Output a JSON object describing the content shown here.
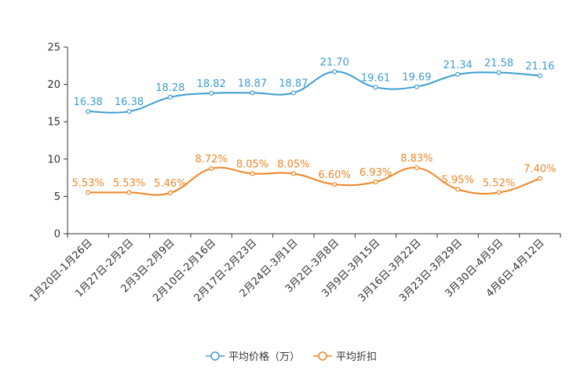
{
  "chart_data": {
    "type": "line",
    "title": "",
    "xlabel": "",
    "ylabel": "",
    "ylim": [
      0,
      25
    ],
    "yticks": [
      0,
      5,
      10,
      15,
      20,
      25
    ],
    "grid": false,
    "legend_position": "bottom",
    "categories": [
      "1月20日-1月26日",
      "1月27日-2月2日",
      "2月3日-2月9日",
      "2月10日-2月16日",
      "2月17日-2月23日",
      "2月24日-3月1日",
      "3月2日-3月8日",
      "3月9日-3月15日",
      "3月16日-3月22日",
      "3月23日-3月29日",
      "3月30日-4月5日",
      "4月6日-4月12日"
    ],
    "series": [
      {
        "name": "平均价格（万）",
        "color": "#3d9cd1",
        "values": [
          16.38,
          16.38,
          18.28,
          18.82,
          18.87,
          18.87,
          21.7,
          19.61,
          19.69,
          21.34,
          21.58,
          21.16
        ],
        "labels": [
          "16.38",
          "16.38",
          "18.28",
          "18.82",
          "18.87",
          "18.87",
          "21.70",
          "19.61",
          "19.69",
          "21.34",
          "21.58",
          "21.16"
        ]
      },
      {
        "name": "平均折扣",
        "color": "#f28524",
        "values": [
          5.53,
          5.53,
          5.46,
          8.72,
          8.05,
          8.05,
          6.6,
          6.93,
          8.83,
          5.95,
          5.52,
          7.4
        ],
        "labels": [
          "5.53%",
          "5.53%",
          "5.46%",
          "8.72%",
          "8.05%",
          "8.05%",
          "6.60%",
          "6.93%",
          "8.83%",
          "5.95%",
          "5.52%",
          "7.40%"
        ]
      }
    ]
  }
}
